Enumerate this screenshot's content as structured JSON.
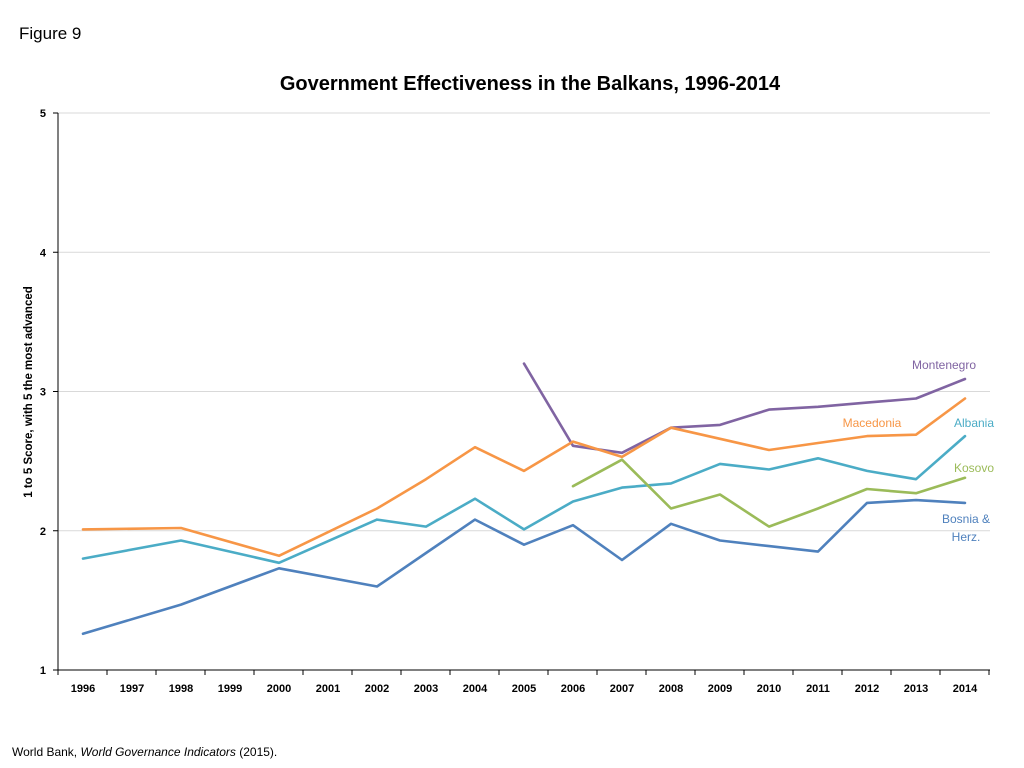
{
  "figure_label": "Figure 9",
  "source": {
    "prefix": "World Bank, ",
    "title": "World Governance Indicators",
    "suffix": " (2015)."
  },
  "chart_data": {
    "type": "line",
    "title": "Government Effectiveness in the Balkans, 1996-2014",
    "xlabel": "",
    "ylabel": "1 to 5 Score, with 5 the most advanced",
    "ylim": [
      1,
      5
    ],
    "yticks": [
      "1",
      "2",
      "3",
      "4",
      "5"
    ],
    "categories": [
      "1996",
      "1997",
      "1998",
      "1999",
      "2000",
      "2001",
      "2002",
      "2003",
      "2004",
      "2005",
      "2006",
      "2007",
      "2008",
      "2009",
      "2010",
      "2011",
      "2012",
      "2013",
      "2014"
    ],
    "grid": true,
    "series": [
      {
        "name": "Montenegro",
        "color": "#8064a2",
        "values": [
          null,
          null,
          null,
          null,
          null,
          null,
          null,
          null,
          null,
          3.2,
          2.61,
          2.56,
          2.74,
          2.76,
          2.87,
          2.89,
          2.92,
          2.95,
          3.09
        ]
      },
      {
        "name": "Macedonia",
        "color": "#f79646",
        "values": [
          2.01,
          null,
          2.02,
          null,
          1.82,
          null,
          2.16,
          2.37,
          2.6,
          2.43,
          2.64,
          2.53,
          2.74,
          2.66,
          2.58,
          2.63,
          2.68,
          2.69,
          2.95
        ]
      },
      {
        "name": "Albania",
        "color": "#4bacc6",
        "values": [
          1.8,
          null,
          1.93,
          null,
          1.77,
          null,
          2.08,
          2.03,
          2.23,
          2.01,
          2.21,
          2.31,
          2.34,
          2.48,
          2.44,
          2.52,
          2.43,
          2.37,
          2.68
        ]
      },
      {
        "name": "Kosovo",
        "color": "#9bbb59",
        "values": [
          null,
          null,
          null,
          null,
          null,
          null,
          null,
          null,
          null,
          null,
          2.32,
          2.51,
          2.16,
          2.26,
          2.03,
          2.16,
          2.3,
          2.27,
          2.38
        ]
      },
      {
        "name": "Bosnia & Herz.",
        "label_lines": [
          "Bosnia &",
          "Herz."
        ],
        "color": "#4f81bd",
        "values": [
          1.26,
          null,
          1.47,
          null,
          1.73,
          null,
          1.6,
          1.84,
          2.08,
          1.9,
          2.04,
          1.79,
          2.05,
          1.93,
          1.89,
          1.85,
          2.2,
          2.22,
          2.2
        ]
      }
    ]
  }
}
